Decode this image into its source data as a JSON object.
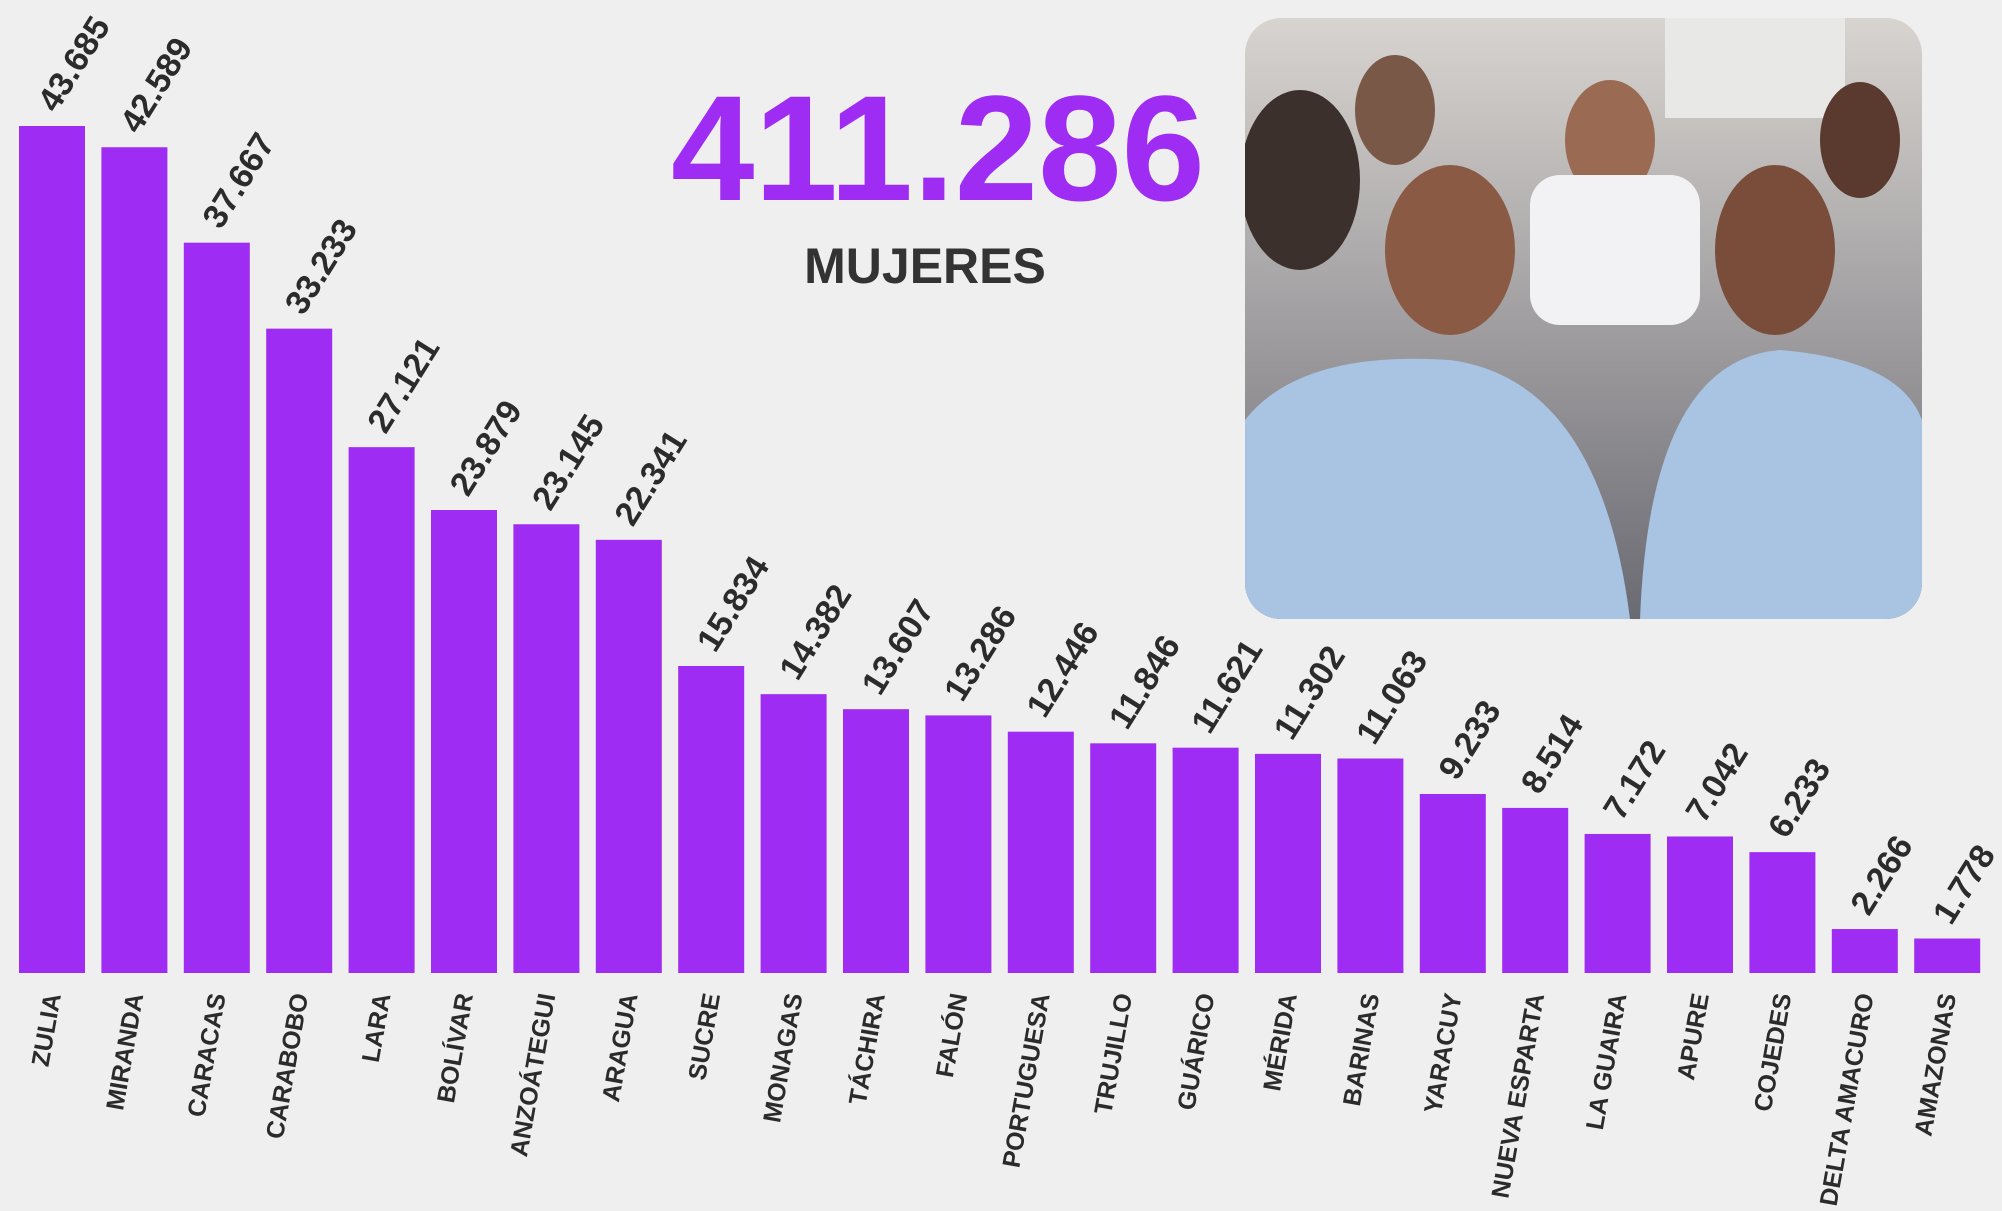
{
  "chart_data": {
    "type": "bar",
    "annotations": [
      "411.286",
      "MUJERES"
    ],
    "categories": [
      "ZULIA",
      "MIRANDA",
      "CARACAS",
      "CARABOBO",
      "LARA",
      "BOLÍVAR",
      "ANZOÁTEGUI",
      "ARAGUA",
      "SUCRE",
      "MONAGAS",
      "TÁCHIRA",
      "FALÓN",
      "PORTUGUESA",
      "TRUJILLO",
      "GUÁRICO",
      "MÉRIDA",
      "BARINAS",
      "YARACUY",
      "NUEVA ESPARTA",
      "LA GUAIRA",
      "APURE",
      "COJEDES",
      "DELTA AMACURO",
      "AMAZONAS"
    ],
    "values": [
      43685,
      42589,
      37667,
      33233,
      27121,
      23879,
      23145,
      22341,
      15834,
      14382,
      13607,
      13286,
      12446,
      11846,
      11621,
      11302,
      11063,
      9233,
      8514,
      7172,
      7042,
      6233,
      2266,
      1778
    ],
    "value_labels": [
      "43.685",
      "42.589",
      "37.667",
      "33.233",
      "27.121",
      "23.879",
      "23.145",
      "22.341",
      "15.834",
      "14.382",
      "13.607",
      "13.286",
      "12.446",
      "11.846",
      "11.621",
      "11.302",
      "11.063",
      "9.233",
      "8.514",
      "7.172",
      "7.042",
      "6.233",
      "2.266",
      "1.778"
    ],
    "color": "#9f2cf2"
  }
}
